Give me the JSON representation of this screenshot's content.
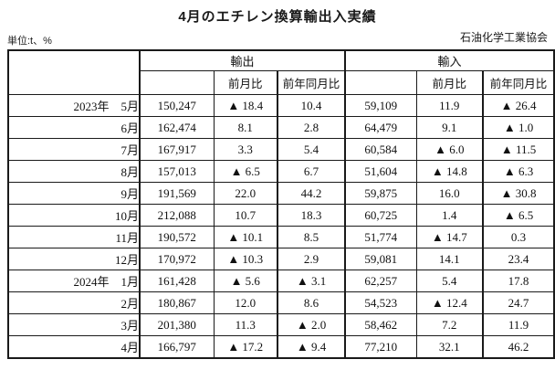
{
  "page": {
    "title": "4月のエチレン換算輸出入実績",
    "unit_note": "単位:t、%",
    "organization": "石油化学工業協会"
  },
  "table": {
    "group_headers": {
      "export": "輸出",
      "import": "輸入"
    },
    "sub_headers": {
      "export_mom": "前月比",
      "export_yoy": "前年同月比",
      "import_mom": "前月比",
      "import_yoy": "前年同月比"
    },
    "rows": [
      {
        "label": "2023年　5月",
        "export_value": "150,247",
        "export_mom": "▲ 18.4",
        "export_yoy": "10.4",
        "import_value": "59,109",
        "import_mom": "11.9",
        "import_yoy": "▲ 26.4"
      },
      {
        "label": "6月",
        "export_value": "162,474",
        "export_mom": "8.1",
        "export_yoy": "2.8",
        "import_value": "64,479",
        "import_mom": "9.1",
        "import_yoy": "▲ 1.0"
      },
      {
        "label": "7月",
        "export_value": "167,917",
        "export_mom": "3.3",
        "export_yoy": "5.4",
        "import_value": "60,584",
        "import_mom": "▲ 6.0",
        "import_yoy": "▲ 11.5"
      },
      {
        "label": "8月",
        "export_value": "157,013",
        "export_mom": "▲ 6.5",
        "export_yoy": "6.7",
        "import_value": "51,604",
        "import_mom": "▲ 14.8",
        "import_yoy": "▲ 6.3"
      },
      {
        "label": "9月",
        "export_value": "191,569",
        "export_mom": "22.0",
        "export_yoy": "44.2",
        "import_value": "59,875",
        "import_mom": "16.0",
        "import_yoy": "▲ 30.8"
      },
      {
        "label": "10月",
        "export_value": "212,088",
        "export_mom": "10.7",
        "export_yoy": "18.3",
        "import_value": "60,725",
        "import_mom": "1.4",
        "import_yoy": "▲ 6.5"
      },
      {
        "label": "11月",
        "export_value": "190,572",
        "export_mom": "▲ 10.1",
        "export_yoy": "8.5",
        "import_value": "51,774",
        "import_mom": "▲ 14.7",
        "import_yoy": "0.3"
      },
      {
        "label": "12月",
        "export_value": "170,972",
        "export_mom": "▲ 10.3",
        "export_yoy": "2.9",
        "import_value": "59,081",
        "import_mom": "14.1",
        "import_yoy": "23.4"
      },
      {
        "label": "2024年　1月",
        "export_value": "161,428",
        "export_mom": "▲ 5.6",
        "export_yoy": "▲ 3.1",
        "import_value": "62,257",
        "import_mom": "5.4",
        "import_yoy": "17.8"
      },
      {
        "label": "2月",
        "export_value": "180,867",
        "export_mom": "12.0",
        "export_yoy": "8.6",
        "import_value": "54,523",
        "import_mom": "▲ 12.4",
        "import_yoy": "24.7"
      },
      {
        "label": "3月",
        "export_value": "201,380",
        "export_mom": "11.3",
        "export_yoy": "▲ 2.0",
        "import_value": "58,462",
        "import_mom": "7.2",
        "import_yoy": "11.9"
      },
      {
        "label": "4月",
        "export_value": "166,797",
        "export_mom": "▲ 17.2",
        "export_yoy": "▲ 9.4",
        "import_value": "77,210",
        "import_mom": "32.1",
        "import_yoy": "46.2"
      }
    ]
  },
  "chart_data": {
    "type": "table",
    "title": "4月のエチレン換算輸出入実績",
    "unit": "t、%",
    "columns": [
      "月",
      "輸出",
      "輸出 前月比",
      "輸出 前年同月比",
      "輸入",
      "輸入 前月比",
      "輸入 前年同月比"
    ],
    "months": [
      "2023-05",
      "2023-06",
      "2023-07",
      "2023-08",
      "2023-09",
      "2023-10",
      "2023-11",
      "2023-12",
      "2024-01",
      "2024-02",
      "2024-03",
      "2024-04"
    ],
    "export_values": [
      150247,
      162474,
      167917,
      157013,
      191569,
      212088,
      190572,
      170972,
      161428,
      180867,
      201380,
      166797
    ],
    "export_mom_pct": [
      -18.4,
      8.1,
      3.3,
      -6.5,
      22.0,
      10.7,
      -10.1,
      -10.3,
      -5.6,
      12.0,
      11.3,
      -17.2
    ],
    "export_yoy_pct": [
      10.4,
      2.8,
      5.4,
      6.7,
      44.2,
      18.3,
      8.5,
      2.9,
      -3.1,
      8.6,
      -2.0,
      -9.4
    ],
    "import_values": [
      59109,
      64479,
      60584,
      51604,
      59875,
      60725,
      51774,
      59081,
      62257,
      54523,
      58462,
      77210
    ],
    "import_mom_pct": [
      11.9,
      9.1,
      -6.0,
      -14.8,
      16.0,
      1.4,
      -14.7,
      14.1,
      5.4,
      -12.4,
      7.2,
      32.1
    ],
    "import_yoy_pct": [
      -26.4,
      -1.0,
      -11.5,
      -6.3,
      -30.8,
      -6.5,
      0.3,
      23.4,
      17.8,
      24.7,
      11.9,
      46.2
    ],
    "negative_marker": "▲"
  }
}
